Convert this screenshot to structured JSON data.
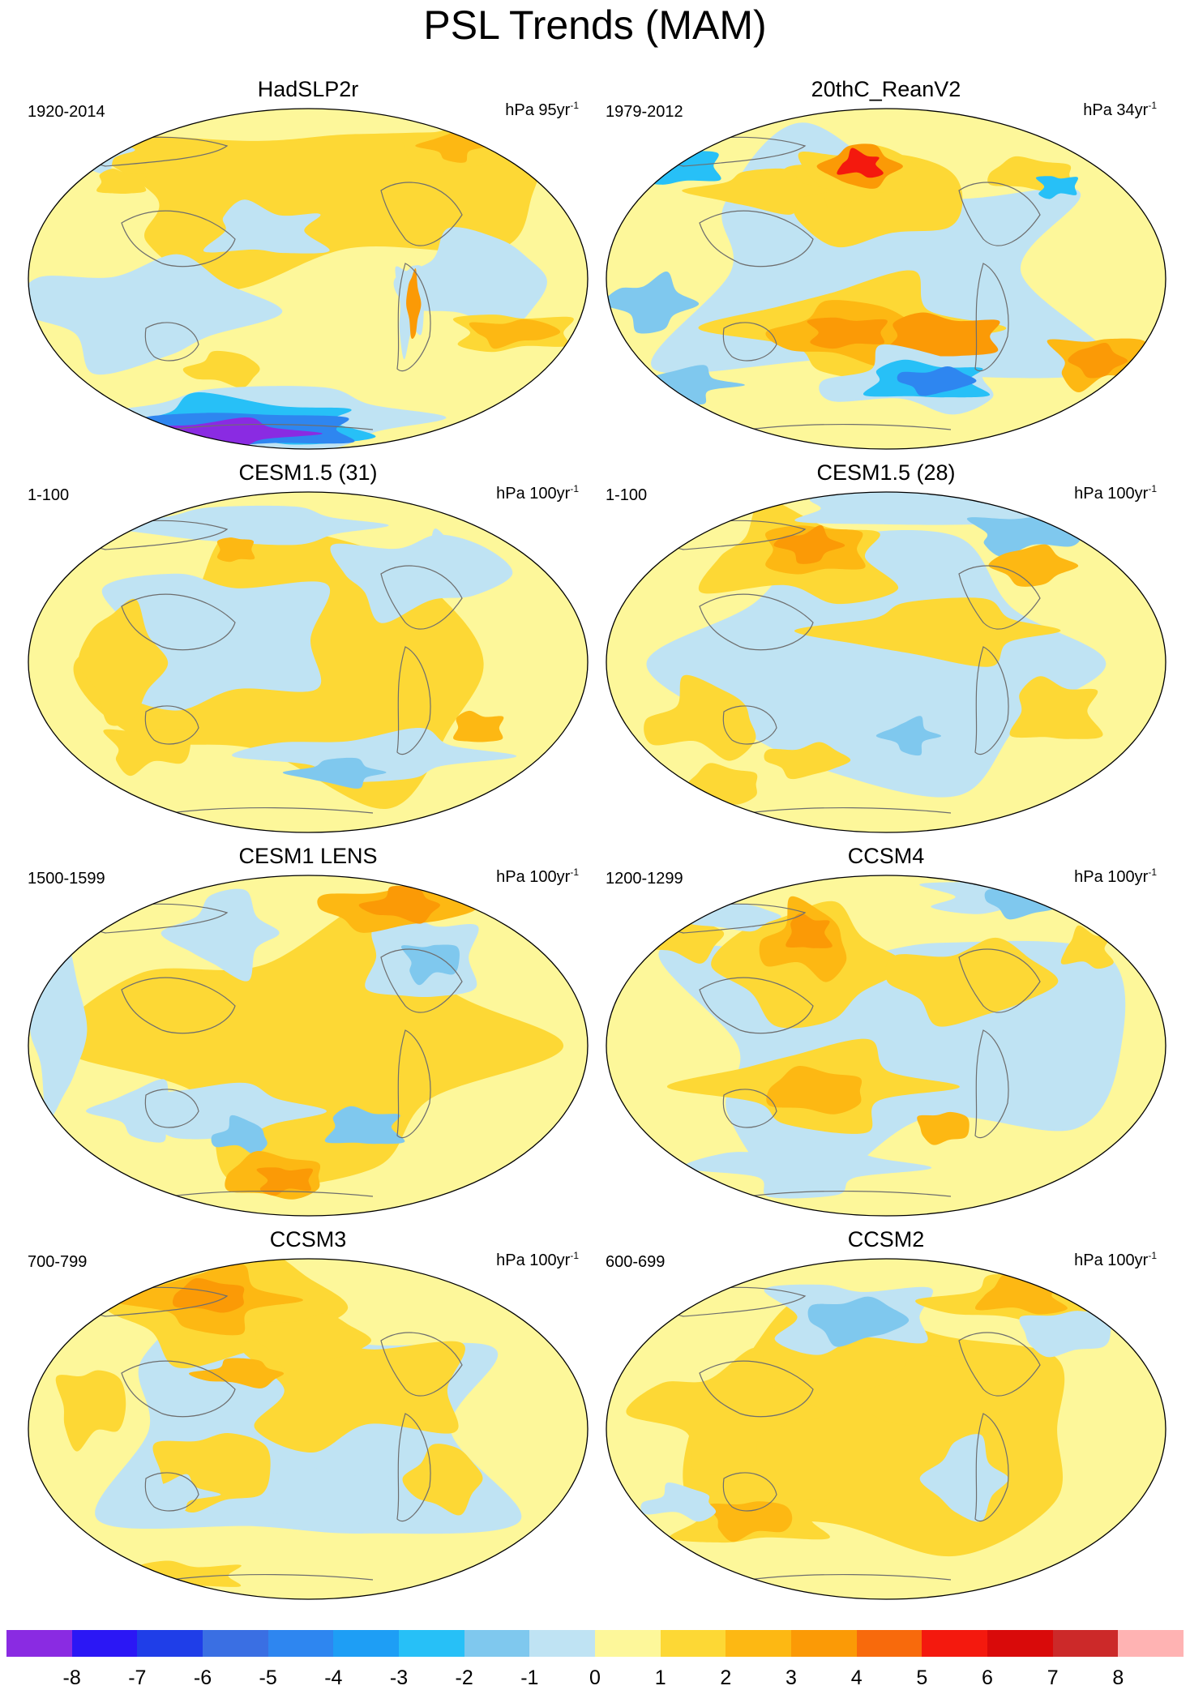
{
  "title": "PSL Trends (MAM)",
  "units_prefix": "hPa",
  "units_suffix": "yr",
  "units_exp": "-1",
  "panels": [
    {
      "title": "HadSLP2r",
      "period": "1920-2014",
      "units_value": "95",
      "field": "hadslp"
    },
    {
      "title": "20thC_ReanV2",
      "period": "1979-2012",
      "units_value": "34",
      "field": "rean"
    },
    {
      "title": "CESM1.5 (31)",
      "period": "1-100",
      "units_value": "100",
      "field": "c15a"
    },
    {
      "title": "CESM1.5 (28)",
      "period": "1-100",
      "units_value": "100",
      "field": "c15b"
    },
    {
      "title": "CESM1 LENS",
      "period": "1500-1599",
      "units_value": "100",
      "field": "lens"
    },
    {
      "title": "CCSM4",
      "period": "1200-1299",
      "units_value": "100",
      "field": "ccsm4"
    },
    {
      "title": "CCSM3",
      "period": "700-799",
      "units_value": "100",
      "field": "ccsm3"
    },
    {
      "title": "CCSM2",
      "period": "600-699",
      "units_value": "100",
      "field": "ccsm2"
    }
  ],
  "colorbar": {
    "colors": [
      "#8a2be2",
      "#2b17f5",
      "#1f3ee8",
      "#3a6fe3",
      "#2e86f0",
      "#1e9ef5",
      "#27c0f7",
      "#7fc8ee",
      "#bfe3f3",
      "#fdf79a",
      "#fdd835",
      "#fdb813",
      "#fb9a06",
      "#f86a0c",
      "#f4190e",
      "#d90a0a",
      "#cc2929",
      "#ffb3b3"
    ],
    "ticks": [
      "-8",
      "-7",
      "-6",
      "-5",
      "-4",
      "-3",
      "-2",
      "-1",
      "0",
      "1",
      "2",
      "3",
      "4",
      "5",
      "6",
      "7",
      "8"
    ]
  }
}
